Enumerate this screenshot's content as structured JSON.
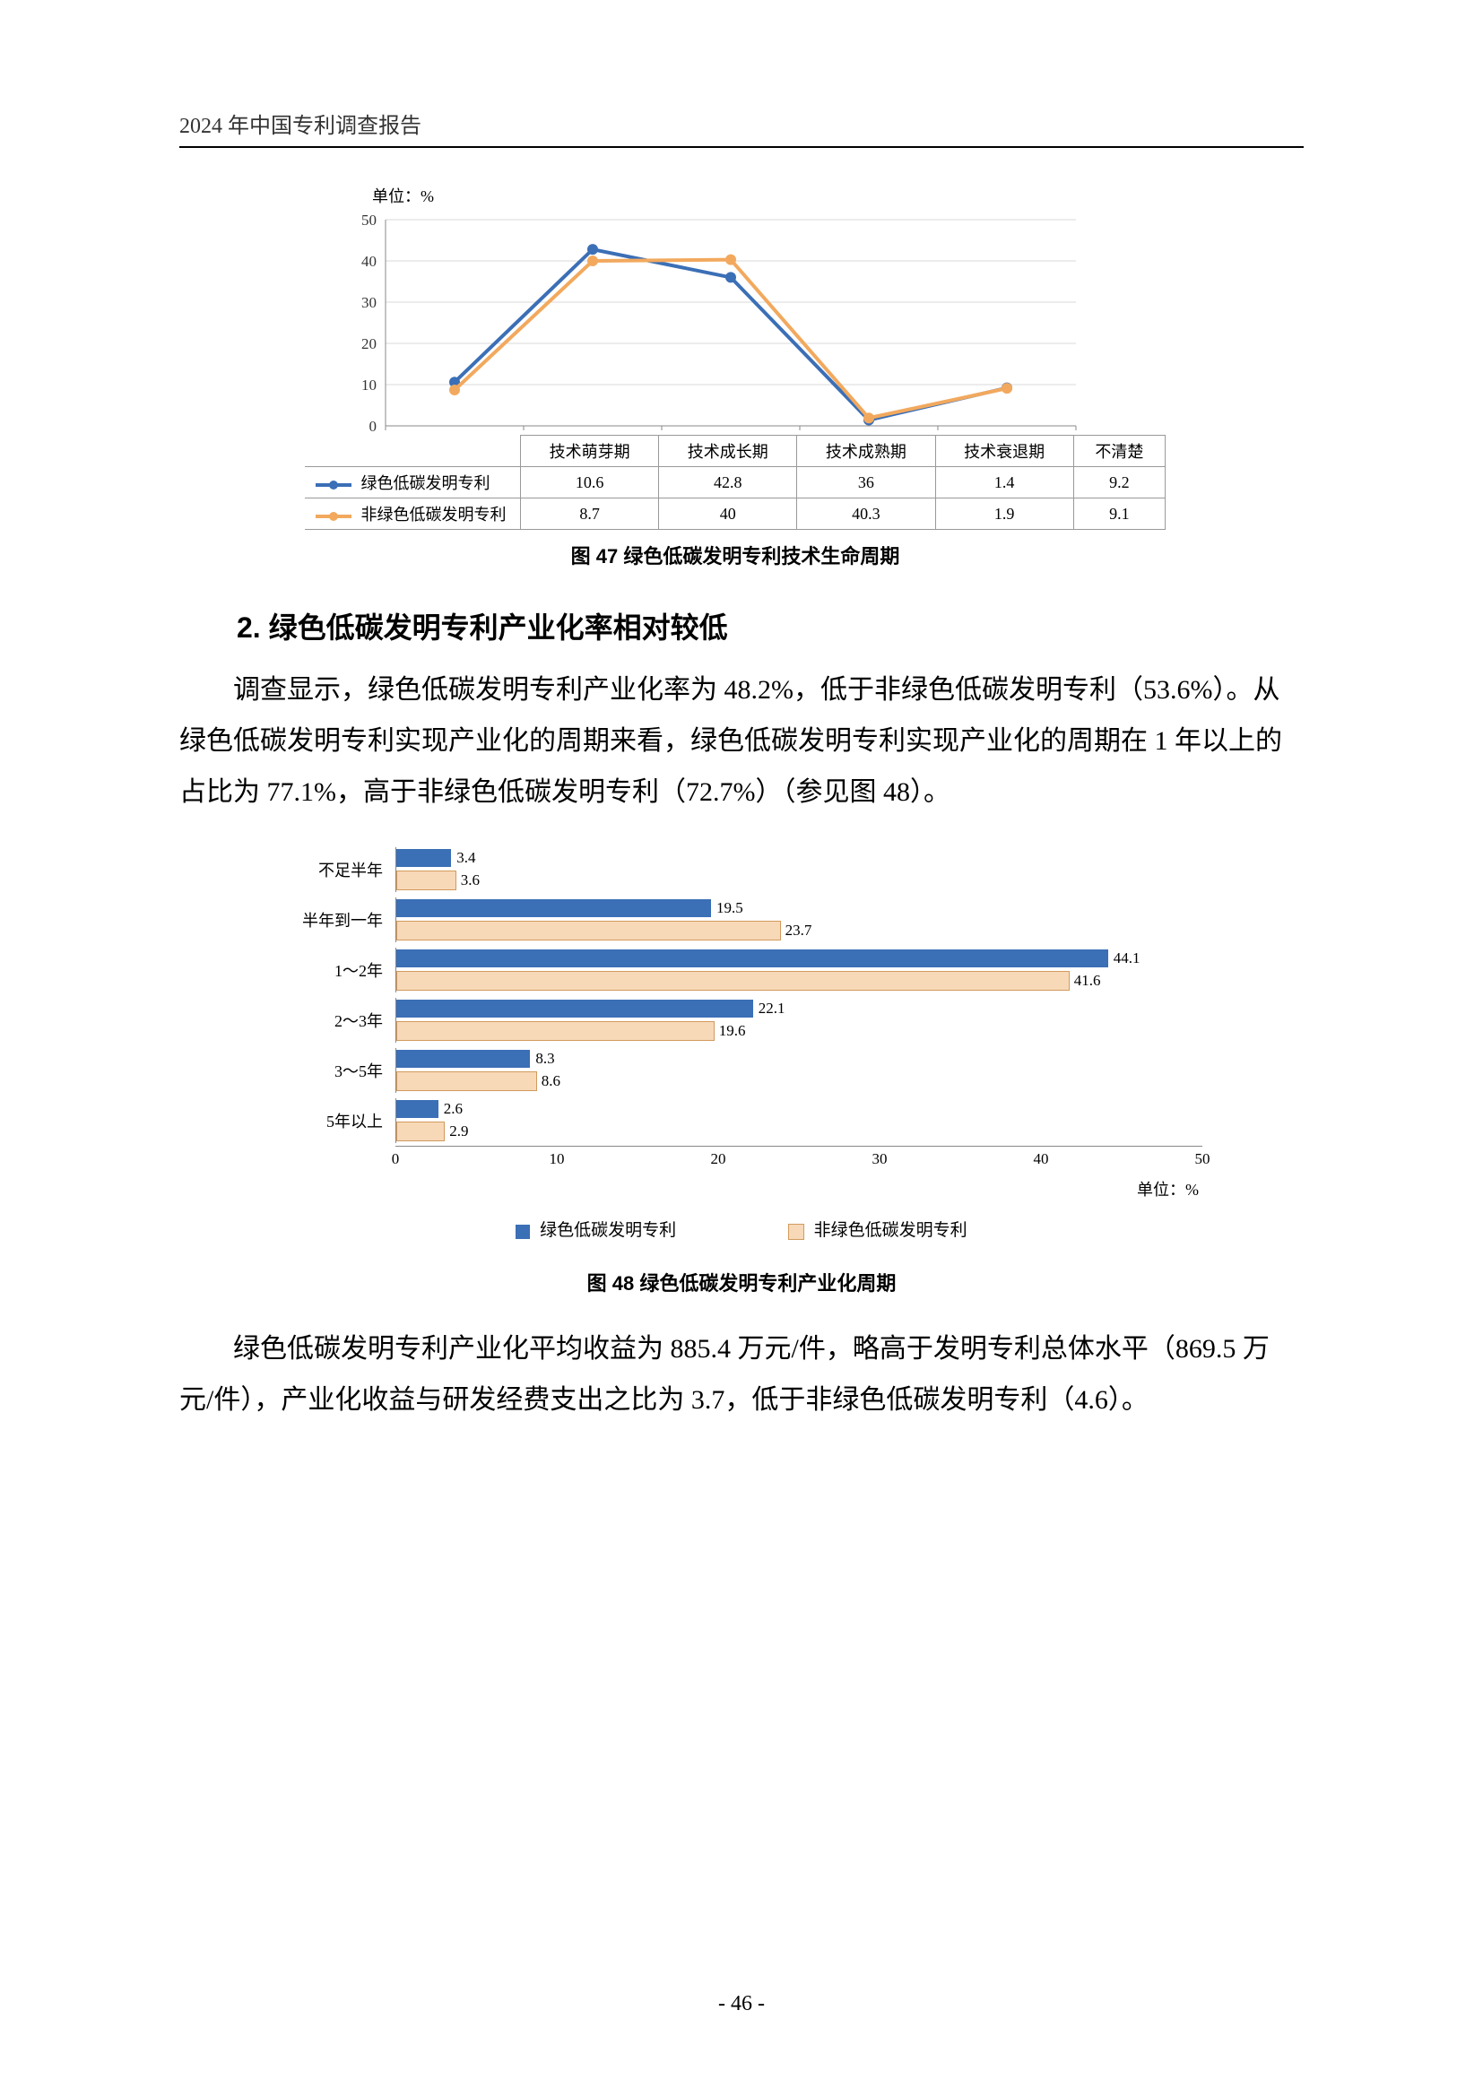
{
  "header": "2024 年中国专利调查报告",
  "page_number": "- 46 -",
  "chart47": {
    "unit_label": "单位：%",
    "caption": "图 47   绿色低碳发明专利技术生命周期",
    "categories": [
      "技术萌芽期",
      "技术成长期",
      "技术成熟期",
      "技术衰退期",
      "不清楚"
    ],
    "series": [
      {
        "name": "绿色低碳发明专利",
        "color": "#3b6fb6",
        "values": [
          10.6,
          42.8,
          36.0,
          1.4,
          9.2
        ]
      },
      {
        "name": "非绿色低碳发明专利",
        "color": "#f2a95e",
        "values": [
          8.7,
          40.0,
          40.3,
          1.9,
          9.1
        ]
      }
    ],
    "ylim": [
      0,
      50
    ],
    "ytick_step": 10,
    "grid_color": "#d9d9d9",
    "axis_color": "#888888",
    "marker_size": 6,
    "line_width": 4
  },
  "section_heading": "2. 绿色低碳发明专利产业化率相对较低",
  "para1": "调查显示，绿色低碳发明专利产业化率为 48.2%，低于非绿色低碳发明专利（53.6%）。从绿色低碳发明专利实现产业化的周期来看，绿色低碳发明专利实现产业化的周期在 1 年以上的占比为 77.1%，高于非绿色低碳发明专利（72.7%）（参见图 48）。",
  "chart48": {
    "caption": "图 48   绿色低碳发明专利产业化周期",
    "unit_label": "单位：%",
    "categories": [
      "不足半年",
      "半年到一年",
      "1～2年",
      "2～3年",
      "3～5年",
      "5年以上"
    ],
    "series": [
      {
        "name": "绿色低碳发明专利",
        "color": "#3b6fb6",
        "values": [
          3.4,
          19.5,
          44.1,
          22.1,
          8.3,
          2.6
        ]
      },
      {
        "name": "非绿色低碳发明专利",
        "color": "#f7d9b8",
        "border": "#d29a5c",
        "values": [
          3.6,
          23.7,
          41.6,
          19.6,
          8.6,
          2.9
        ]
      }
    ],
    "xlim": [
      0,
      50
    ],
    "xtick_step": 10,
    "legend_swatch1": "#3b6fb6",
    "legend_swatch2": "#f7d9b8"
  },
  "para2": "绿色低碳发明专利产业化平均收益为 885.4 万元/件，略高于发明专利总体水平（869.5 万元/件），产业化收益与研发经费支出之比为 3.7，低于非绿色低碳发明专利（4.6）。"
}
